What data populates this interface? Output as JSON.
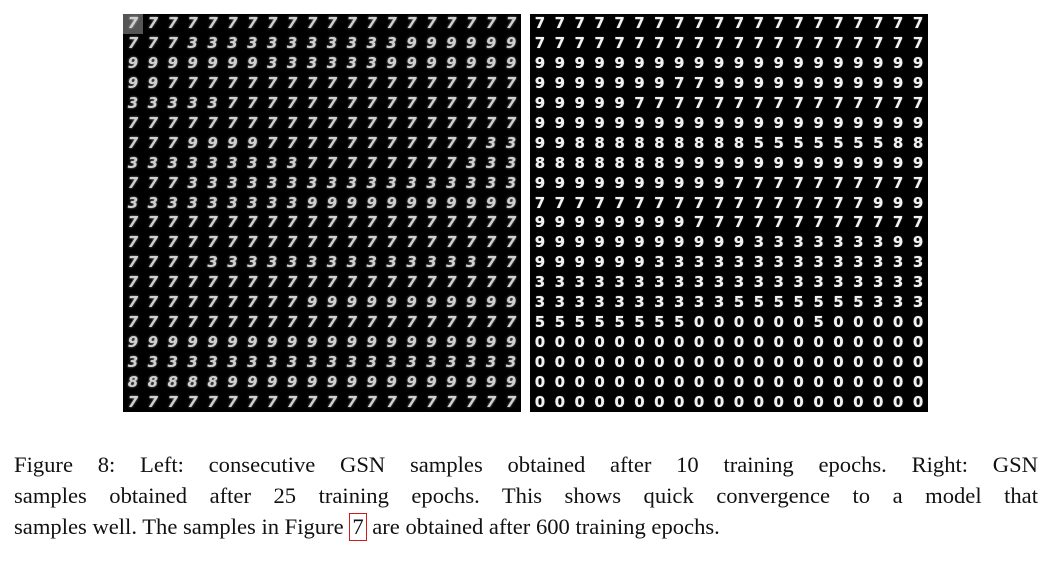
{
  "figure": {
    "left_panel": {
      "rows": [
        "77777777777777777777",
        "77733333333333999999",
        "99999993333339999999",
        "99777777777777777777",
        "33333777777777777777",
        "77777777777777777777",
        "77799997777777777733",
        "33333333377777777333",
        "77733333333333333333",
        "33333333399999999999",
        "77777777777777777777",
        "77777777777777777777",
        "77773333333333333377",
        "77777777777777777777",
        "77777777799999999999",
        "77777777777777777777",
        "99999999999999999999",
        "33333333333333333333",
        "88888999999999999999",
        "77777777777777777777"
      ]
    },
    "right_panel": {
      "rows": [
        "77777777777777777777",
        "77777777777777777777",
        "99999999999999999999",
        "99999997799999999999",
        "99999777777777777777",
        "99999999999999999999",
        "99888888888555555588",
        "88888889999999999999",
        "99999999997777777777",
        "77777777777777777999",
        "99999999777777777777",
        "99999999999333333399",
        "99999933333333333333",
        "33333333333333333333",
        "33333333335555555333",
        "55555555000000500000",
        "00000000000000000000",
        "00000000000000000000",
        "00000000000000000000",
        "00000000000000000000"
      ]
    }
  },
  "caption": {
    "line1": "Figure 8: Left: consecutive GSN samples obtained after 10 training epochs. Right: GSN",
    "line2": "samples obtained after 25 training epochs. This shows quick convergence to a model that",
    "line3_before": "samples well. The samples in Figure ",
    "ref": "7",
    "line3_after": " are obtained after 600 training epochs."
  }
}
